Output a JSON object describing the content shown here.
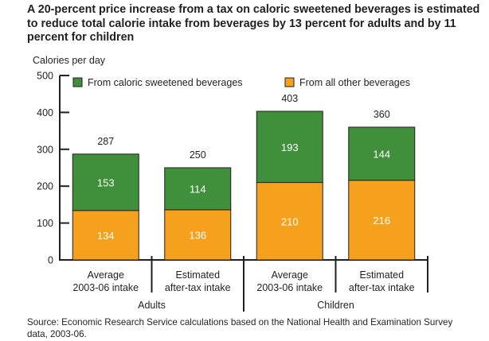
{
  "chart_data": {
    "type": "bar",
    "stacked": true,
    "title": "A 20-percent price increase from a tax on caloric sweetened beverages is estimated to reduce total calorie intake from beverages by 13 percent for adults and by 11 percent for children",
    "ylabel": "Calories per day",
    "ylim": [
      0,
      500
    ],
    "yticks": [
      "0",
      "100",
      "200",
      "300",
      "400",
      "500"
    ],
    "categories": [
      "Average 2003-06 intake",
      "Estimated after-tax intake",
      "Average 2003-06 intake",
      "Estimated after-tax intake"
    ],
    "category_lines": [
      [
        "Average",
        "2003-06 intake"
      ],
      [
        "Estimated",
        "after-tax intake"
      ],
      [
        "Average",
        "2003-06 intake"
      ],
      [
        "Estimated",
        "after-tax intake"
      ]
    ],
    "groups": [
      "Adults",
      "Children"
    ],
    "series": [
      {
        "name": "From all other beverages",
        "values": [
          134,
          136,
          210,
          216
        ],
        "color": "#f5a11e"
      },
      {
        "name": "From caloric sweetened beverages",
        "values": [
          153,
          114,
          193,
          144
        ],
        "color": "#3f8f3b"
      }
    ],
    "totals": [
      287,
      250,
      403,
      360
    ],
    "legend_position": "top",
    "grid": false,
    "source": "Source: Economic Research Service calculations based on the National Health and Examination Survey data, 2003-06."
  }
}
